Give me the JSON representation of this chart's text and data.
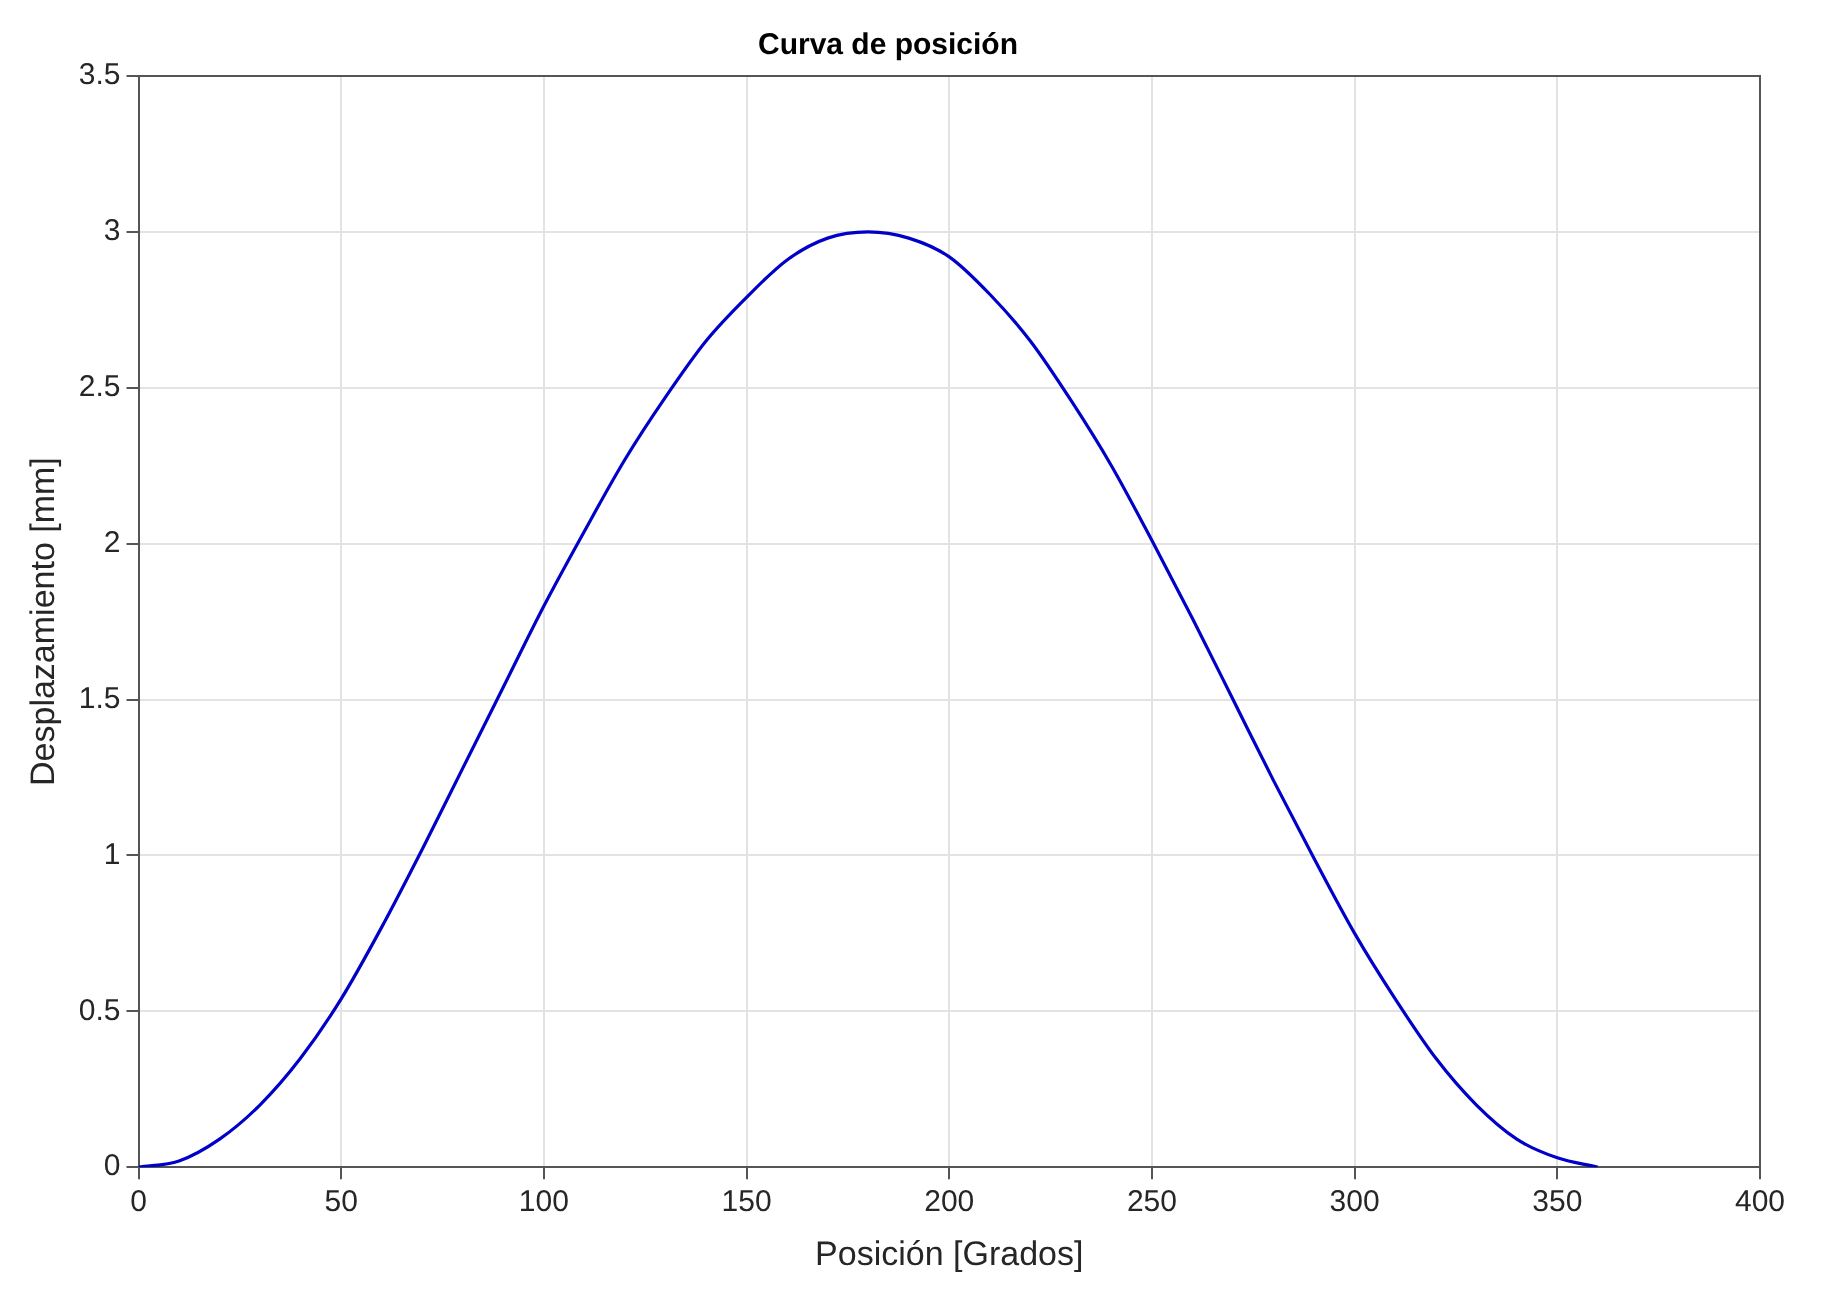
{
  "chart_data": {
    "type": "line",
    "title": "Curva de posición",
    "xlabel": "Posición [Grados]",
    "ylabel": "Desplazamiento [mm]",
    "x": [
      0,
      10,
      20,
      30,
      40,
      50,
      60,
      70,
      80,
      90,
      100,
      110,
      120,
      130,
      140,
      150,
      160,
      170,
      180,
      190,
      200,
      210,
      220,
      230,
      240,
      250,
      260,
      270,
      280,
      290,
      300,
      310,
      320,
      330,
      340,
      350,
      360
    ],
    "series": [
      {
        "color": "#0000c8",
        "values": [
          0,
          0.02,
          0.09,
          0.2,
          0.35,
          0.54,
          0.77,
          1.02,
          1.28,
          1.54,
          1.8,
          2.04,
          2.27,
          2.47,
          2.65,
          2.79,
          2.91,
          2.98,
          3,
          2.98,
          2.92,
          2.8,
          2.65,
          2.46,
          2.25,
          2.01,
          1.76,
          1.5,
          1.24,
          0.99,
          0.75,
          0.54,
          0.35,
          0.2,
          0.09,
          0.03,
          0
        ]
      }
    ],
    "xlim": [
      0,
      400
    ],
    "xticks": [
      0,
      50,
      100,
      150,
      200,
      250,
      300,
      350,
      400
    ],
    "ylim": [
      0,
      3.5
    ],
    "yticks": [
      0,
      0.5,
      1,
      1.5,
      2,
      2.5,
      3,
      3.5
    ],
    "grid": true,
    "legend": false,
    "marker": "none",
    "line_style": "solid"
  }
}
